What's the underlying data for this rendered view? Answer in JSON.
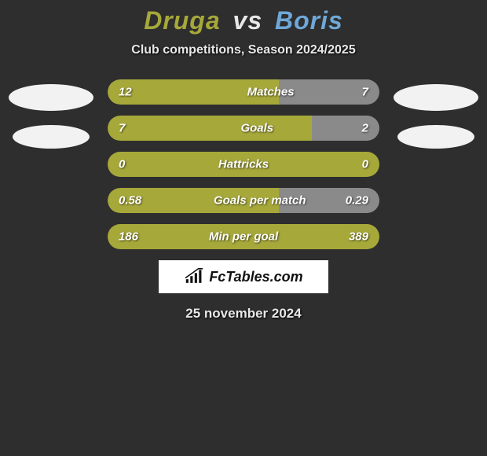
{
  "title": {
    "player1": "Druga",
    "vs": "vs",
    "player2": "Boris"
  },
  "subtitle": "Club competitions, Season 2024/2025",
  "colors": {
    "player1": "#a6a83a",
    "player2_title": "#6fa8d8",
    "bar_left": "#a6a83a",
    "bar_right": "#8a8a8a",
    "background": "#2e2e2e",
    "text": "#e8e8e8",
    "logo_bg": "#ffffff"
  },
  "stats": [
    {
      "key": "matches",
      "label": "Matches",
      "left_val": "12",
      "right_val": "7",
      "left_pct": 63,
      "full": false
    },
    {
      "key": "goals",
      "label": "Goals",
      "left_val": "7",
      "right_val": "2",
      "left_pct": 75,
      "full": false
    },
    {
      "key": "hattricks",
      "label": "Hattricks",
      "left_val": "0",
      "right_val": "0",
      "left_pct": 100,
      "full": true
    },
    {
      "key": "gpm",
      "label": "Goals per match",
      "left_val": "0.58",
      "right_val": "0.29",
      "left_pct": 63,
      "full": false
    },
    {
      "key": "mpg",
      "label": "Min per goal",
      "left_val": "186",
      "right_val": "389",
      "left_pct": 100,
      "full": true
    }
  ],
  "logo": {
    "text": "FcTables.com"
  },
  "date": "25 november 2024"
}
